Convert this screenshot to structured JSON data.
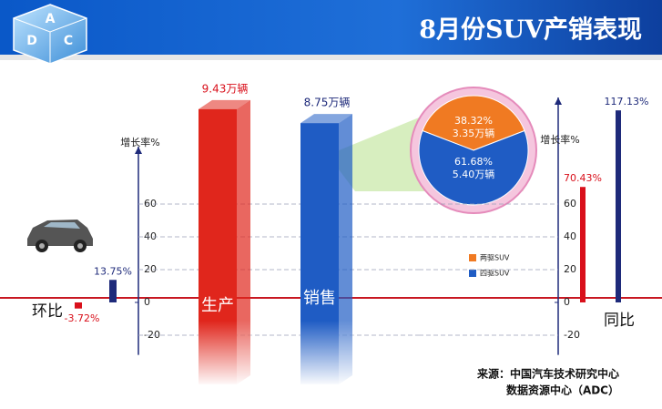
{
  "header": {
    "title": "8月份SUV产销表现",
    "logo": [
      "A",
      "D",
      "C"
    ]
  },
  "chart_data": [
    {
      "type": "bar",
      "ylabel": "增长率%",
      "category": "环比",
      "values": [
        -3.72,
        13.75
      ],
      "value_labels": [
        "-3.72%",
        "13.75%"
      ],
      "colors": [
        "#d9101b",
        "#1e2a7a"
      ],
      "ylim": [
        -32,
        95
      ],
      "yticks": [
        -20,
        0,
        20,
        40,
        60
      ],
      "grid": true
    },
    {
      "type": "bar",
      "categories": [
        "生产",
        "销售"
      ],
      "values": [
        9.43,
        8.75
      ],
      "value_labels": [
        "9.43万辆",
        "8.75万辆"
      ],
      "colors": [
        "#e0261c",
        "#1f5cc4"
      ]
    },
    {
      "type": "pie",
      "categories": [
        "两驱SUV",
        "四驱SUV"
      ],
      "values": [
        38.32,
        61.68
      ],
      "value_labels": [
        "38.32%",
        "61.68%"
      ],
      "sub_labels": [
        "3.35万辆",
        "5.40万辆"
      ],
      "colors": [
        "#f07a22",
        "#1f5cc4"
      ]
    },
    {
      "type": "bar",
      "ylabel": "增长率%",
      "category": "同比",
      "values": [
        70.43,
        117.13
      ],
      "value_labels": [
        "70.43%",
        "117.13%"
      ],
      "colors": [
        "#d9101b",
        "#1e2a7a"
      ],
      "ylim": [
        -32,
        125
      ],
      "yticks": [
        -20,
        0,
        20,
        40,
        60
      ],
      "grid": true
    }
  ],
  "source": [
    "来源：中国汽车技术研究中心",
    "数据资源中心（ADC）"
  ]
}
